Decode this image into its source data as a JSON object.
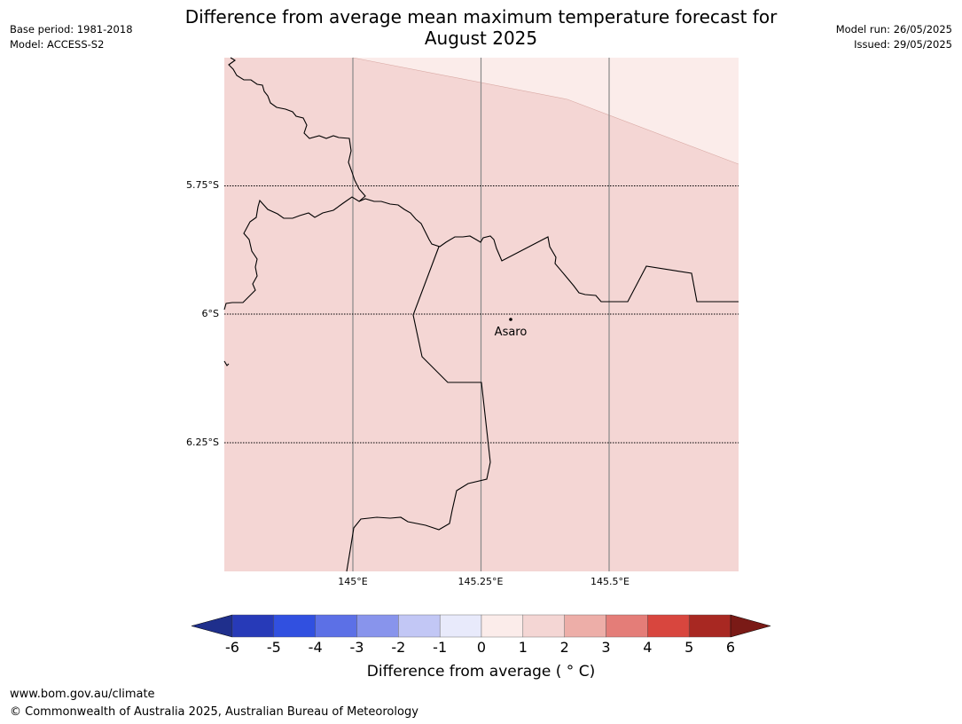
{
  "header": {
    "title_line1": "Difference from average mean maximum temperature forecast for",
    "title_line2": "August 2025",
    "base_period": "Base period: 1981-2018",
    "model": "Model: ACCESS-S2",
    "model_run": "Model run: 26/05/2025",
    "issued": "Issued: 29/05/2025"
  },
  "map": {
    "lat_labels": [
      "5.75°S",
      "6°S",
      "6.25°S"
    ],
    "lon_labels": [
      "145°E",
      "145.25°E",
      "145.5°E"
    ],
    "place_label": "Asaro",
    "fill_colors": {
      "main": "#f4d6d4",
      "light": "#fbecea"
    }
  },
  "colorbar": {
    "ticks": [
      "-6",
      "-5",
      "-4",
      "-3",
      "-2",
      "-1",
      "0",
      "1",
      "2",
      "3",
      "4",
      "5",
      "6"
    ],
    "colors": [
      "#1f2f8c",
      "#273ab8",
      "#3150e0",
      "#5c70e6",
      "#8894ec",
      "#c2c7f5",
      "#e8eafb",
      "#fbecea",
      "#f4d6d4",
      "#edaea8",
      "#e47d78",
      "#d8463e",
      "#a82822",
      "#7a1a16"
    ],
    "label": "Difference from average ( ° C)"
  },
  "footer": {
    "url": "www.bom.gov.au/climate",
    "copyright": "© Commonwealth of Australia 2025, Australian Bureau of Meteorology"
  }
}
